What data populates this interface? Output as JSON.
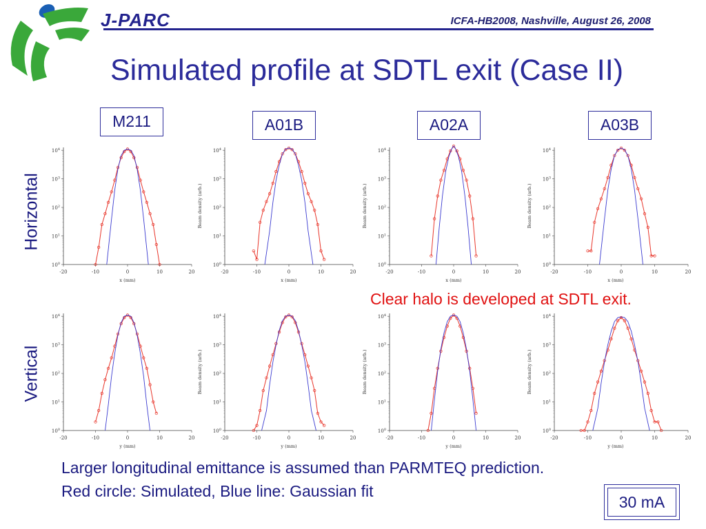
{
  "header": {
    "brand": "J-PARC",
    "conference": "ICFA-HB2008, Nashville, August 26, 2008",
    "title": "Simulated profile at SDTL exit (Case II)",
    "logo_icon": "jparc-logo-icon"
  },
  "columns": [
    "M211",
    "A01B",
    "A02A",
    "A03B"
  ],
  "rows": [
    "Horizontal",
    "Vertical"
  ],
  "annotations": {
    "halo": "Clear halo is developed at SDTL exit.",
    "line1": "Larger longitudinal emittance is assumed than PARMTEQ prediction.",
    "line2": "Red circle: Simulated, Blue line: Gaussian fit",
    "current": "30 mA"
  },
  "colors": {
    "title": "#2b2b9a",
    "simulated": "#e8352a",
    "gaussian": "#3a3ad0",
    "halo_note": "#e01010"
  },
  "chart_data": [
    {
      "type": "scatter",
      "plane": "x",
      "column": "M211",
      "xlabel": "x (mm)",
      "ylabel": "",
      "xlim": [
        -20,
        20
      ],
      "ylim": [
        1,
        10000
      ],
      "yscale": "log",
      "xticks": [
        "-20",
        "-10",
        "0",
        "10",
        "20"
      ],
      "xticks_vals": [
        -20,
        -10,
        0,
        10,
        20
      ],
      "yticks": [
        "10^0",
        "10^1",
        "10^2",
        "10^3",
        "10^4"
      ],
      "series": [
        {
          "name": "Simulated",
          "x": [
            -10,
            -9,
            -8,
            -7,
            -6,
            -5,
            -4,
            -3,
            -2,
            -1,
            0,
            1,
            2,
            3,
            4,
            5,
            6,
            7,
            8,
            9,
            10
          ],
          "y": [
            1,
            4,
            25,
            60,
            150,
            350,
            900,
            2500,
            5500,
            9000,
            11000,
            9000,
            5500,
            2500,
            900,
            350,
            150,
            60,
            25,
            5,
            1
          ]
        },
        {
          "name": "Gaussian fit",
          "x": [
            -6.5,
            -5,
            -4,
            -3,
            -2,
            -1,
            0,
            1,
            2,
            3,
            4,
            5,
            6.5
          ],
          "y": [
            1,
            40,
            400,
            2200,
            6500,
            10000,
            11000,
            10000,
            6500,
            2200,
            400,
            40,
            1
          ]
        }
      ]
    },
    {
      "type": "scatter",
      "plane": "x",
      "column": "A01B",
      "xlabel": "x (mm)",
      "ylabel": "Beam density (arb.)",
      "xlim": [
        -20,
        20
      ],
      "ylim": [
        1,
        10000
      ],
      "yscale": "log",
      "xticks": [
        "-20",
        "-10",
        "0",
        "10",
        "20"
      ],
      "xticks_vals": [
        -20,
        -10,
        0,
        10,
        20
      ],
      "yticks": [
        "10^0",
        "10^1",
        "10^2",
        "10^3",
        "10^4"
      ],
      "series": [
        {
          "name": "Simulated",
          "x": [
            -11,
            -10,
            -9,
            -8,
            -7,
            -6,
            -5,
            -4,
            -3,
            -2,
            -1,
            0,
            1,
            2,
            3,
            4,
            5,
            6,
            7,
            8,
            9,
            10,
            11
          ],
          "y": [
            3,
            1.5,
            30,
            80,
            160,
            300,
            700,
            1800,
            4000,
            7500,
            10500,
            12000,
            10500,
            7500,
            4000,
            1800,
            700,
            300,
            160,
            80,
            25,
            3,
            1.5
          ]
        },
        {
          "name": "Gaussian fit",
          "x": [
            -7.5,
            -6,
            -5,
            -4,
            -3,
            -2,
            -1,
            0,
            1,
            2,
            3,
            4,
            5,
            6,
            7.5
          ],
          "y": [
            1,
            15,
            150,
            900,
            3000,
            7500,
            11000,
            12000,
            11000,
            7500,
            3000,
            900,
            150,
            15,
            1
          ]
        }
      ]
    },
    {
      "type": "scatter",
      "plane": "x",
      "column": "A02A",
      "xlabel": "x (mm)",
      "ylabel": "Beam density (arb.)",
      "xlim": [
        -20,
        20
      ],
      "ylim": [
        1,
        10000
      ],
      "yscale": "log",
      "xticks": [
        "-20",
        "-10",
        "0",
        "10",
        "20"
      ],
      "xticks_vals": [
        -20,
        -10,
        0,
        10,
        20
      ],
      "yticks": [
        "10^0",
        "10^1",
        "10^2",
        "10^3",
        "10^4"
      ],
      "series": [
        {
          "name": "Simulated",
          "x": [
            -7,
            -6,
            -5,
            -4,
            -3,
            -2,
            -1,
            0,
            1,
            2,
            3,
            4,
            5,
            6,
            7
          ],
          "y": [
            2,
            40,
            250,
            900,
            2000,
            5000,
            9500,
            14000,
            9500,
            5000,
            2000,
            900,
            250,
            40,
            2
          ]
        },
        {
          "name": "Gaussian fit",
          "x": [
            -5.5,
            -4.5,
            -3.5,
            -2.5,
            -1.5,
            -0.5,
            0,
            0.5,
            1.5,
            2.5,
            3.5,
            4.5,
            5.5
          ],
          "y": [
            1,
            20,
            250,
            1800,
            6000,
            12000,
            14000,
            12000,
            6000,
            1800,
            250,
            20,
            1
          ]
        }
      ]
    },
    {
      "type": "scatter",
      "plane": "x",
      "column": "A03B",
      "xlabel": "x (mm)",
      "ylabel": "Beam density (arb.)",
      "xlim": [
        -20,
        20
      ],
      "ylim": [
        1,
        10000
      ],
      "yscale": "log",
      "xticks": [
        "-20",
        "-10",
        "0",
        "10",
        "20"
      ],
      "xticks_vals": [
        -20,
        -10,
        0,
        10,
        20
      ],
      "yticks": [
        "10^0",
        "10^1",
        "10^2",
        "10^3",
        "10^4"
      ],
      "series": [
        {
          "name": "Simulated",
          "x": [
            -10,
            -9,
            -8,
            -7,
            -6,
            -5,
            -4,
            -3,
            -2,
            -1,
            0,
            1,
            2,
            3,
            4,
            5,
            6,
            7,
            8,
            9,
            10
          ],
          "y": [
            3,
            3,
            30,
            90,
            200,
            450,
            1100,
            3000,
            6500,
            10000,
            12000,
            10000,
            6500,
            3000,
            1100,
            450,
            200,
            60,
            20,
            2,
            2
          ]
        },
        {
          "name": "Gaussian fit",
          "x": [
            -6.5,
            -5,
            -4,
            -3,
            -2,
            -1,
            0,
            1,
            2,
            3,
            4,
            5,
            6.5
          ],
          "y": [
            1,
            40,
            400,
            2200,
            6500,
            10500,
            12000,
            10500,
            6500,
            2200,
            400,
            40,
            1
          ]
        }
      ]
    },
    {
      "type": "scatter",
      "plane": "y",
      "column": "M211",
      "xlabel": "y (mm)",
      "ylabel": "",
      "xlim": [
        -20,
        20
      ],
      "ylim": [
        1,
        10000
      ],
      "yscale": "log",
      "xticks": [
        "-20",
        "-10",
        "0",
        "10",
        "20"
      ],
      "xticks_vals": [
        -20,
        -10,
        0,
        10,
        20
      ],
      "yticks": [
        "10^0",
        "10^1",
        "10^2",
        "10^3",
        "10^4"
      ],
      "series": [
        {
          "name": "Simulated",
          "x": [
            -10,
            -9,
            -8,
            -7,
            -6,
            -5,
            -4,
            -3,
            -2,
            -1,
            0,
            1,
            2,
            3,
            4,
            5,
            6,
            7,
            8,
            9
          ],
          "y": [
            2,
            5,
            20,
            60,
            150,
            350,
            900,
            2400,
            5500,
            9000,
            11000,
            9000,
            5500,
            2400,
            900,
            350,
            150,
            40,
            10,
            4
          ]
        },
        {
          "name": "Gaussian fit",
          "x": [
            -7,
            -6,
            -5,
            -4,
            -3,
            -2,
            -1,
            0,
            1,
            2,
            3,
            4,
            5,
            6,
            7
          ],
          "y": [
            1,
            8,
            80,
            500,
            2200,
            6000,
            10000,
            11000,
            10000,
            6000,
            2200,
            500,
            80,
            8,
            1
          ]
        }
      ]
    },
    {
      "type": "scatter",
      "plane": "y",
      "column": "A01B",
      "xlabel": "y (mm)",
      "ylabel": "Beam density (arb.)",
      "xlim": [
        -20,
        20
      ],
      "ylim": [
        1,
        10000
      ],
      "yscale": "log",
      "xticks": [
        "-20",
        "-10",
        "0",
        "10",
        "20"
      ],
      "xticks_vals": [
        -20,
        -10,
        0,
        10,
        20
      ],
      "yticks": [
        "10^0",
        "10^1",
        "10^2",
        "10^3",
        "10^4"
      ],
      "series": [
        {
          "name": "Simulated",
          "x": [
            -11,
            -10,
            -9,
            -8,
            -7,
            -6,
            -5,
            -4,
            -3,
            -2,
            -1,
            0,
            1,
            2,
            3,
            4,
            5,
            6,
            7,
            8,
            9,
            10,
            11
          ],
          "y": [
            1,
            1.5,
            5,
            25,
            70,
            180,
            450,
            1100,
            2800,
            6000,
            9500,
            11000,
            9500,
            6000,
            2800,
            1100,
            450,
            180,
            70,
            25,
            4,
            2,
            1.5
          ]
        },
        {
          "name": "Gaussian fit",
          "x": [
            -8.5,
            -7,
            -6,
            -5,
            -4,
            -3,
            -2,
            -1,
            0,
            1,
            2,
            3,
            4,
            5,
            6,
            7,
            8.5
          ],
          "y": [
            1,
            5,
            40,
            250,
            1000,
            3200,
            7000,
            10000,
            11000,
            10000,
            7000,
            3200,
            1000,
            250,
            40,
            5,
            1
          ]
        }
      ]
    },
    {
      "type": "scatter",
      "plane": "y",
      "column": "A02A",
      "xlabel": "y (mm)",
      "ylabel": "Beam density (arb.)",
      "xlim": [
        -20,
        20
      ],
      "ylim": [
        1,
        10000
      ],
      "yscale": "log",
      "xticks": [
        "-20",
        "-10",
        "0",
        "10",
        "20"
      ],
      "xticks_vals": [
        -20,
        -10,
        0,
        10,
        20
      ],
      "yticks": [
        "10^0",
        "10^1",
        "10^2",
        "10^3",
        "10^4"
      ],
      "series": [
        {
          "name": "Simulated",
          "x": [
            -8,
            -7,
            -6,
            -5,
            -4,
            -3,
            -2,
            -1,
            0,
            1,
            2,
            3,
            4,
            5,
            6,
            7
          ],
          "y": [
            1,
            4,
            30,
            150,
            600,
            1800,
            4500,
            8500,
            11000,
            8500,
            4500,
            1800,
            600,
            150,
            30,
            4
          ]
        },
        {
          "name": "Gaussian fit",
          "x": [
            -7,
            -6,
            -5,
            -4,
            -3,
            -2,
            -1,
            0,
            1,
            2,
            3,
            4,
            5,
            6,
            7
          ],
          "y": [
            1,
            12,
            120,
            700,
            2600,
            6500,
            10000,
            11000,
            10000,
            6500,
            2600,
            700,
            120,
            12,
            1
          ]
        }
      ]
    },
    {
      "type": "scatter",
      "plane": "y",
      "column": "A03B",
      "xlabel": "y (mm)",
      "ylabel": "Beam density (arb.)",
      "xlim": [
        -20,
        20
      ],
      "ylim": [
        1,
        10000
      ],
      "yscale": "log",
      "xticks": [
        "-20",
        "-10",
        "0",
        "10",
        "20"
      ],
      "xticks_vals": [
        -20,
        -10,
        0,
        10,
        20
      ],
      "yticks": [
        "10^0",
        "10^1",
        "10^2",
        "10^3",
        "10^4"
      ],
      "series": [
        {
          "name": "Simulated",
          "x": [
            -12,
            -11,
            -10,
            -9,
            -8,
            -7,
            -6,
            -5,
            -4,
            -3,
            -2,
            -1,
            0,
            1,
            2,
            3,
            4,
            5,
            6,
            7,
            8,
            9,
            10,
            11,
            12
          ],
          "y": [
            1,
            1,
            2,
            5,
            20,
            50,
            120,
            280,
            650,
            1600,
            3800,
            7000,
            9000,
            7000,
            3800,
            1600,
            650,
            280,
            120,
            50,
            20,
            5,
            2,
            2,
            1
          ]
        },
        {
          "name": "Gaussian fit",
          "x": [
            -8.5,
            -7,
            -6,
            -5,
            -4,
            -3,
            -2,
            -1,
            0,
            1,
            2,
            3,
            4,
            5,
            6,
            7,
            8.5
          ],
          "y": [
            1,
            6,
            45,
            260,
            1000,
            3000,
            6500,
            9000,
            9500,
            9000,
            6500,
            3000,
            1000,
            260,
            45,
            6,
            1
          ]
        }
      ]
    }
  ]
}
